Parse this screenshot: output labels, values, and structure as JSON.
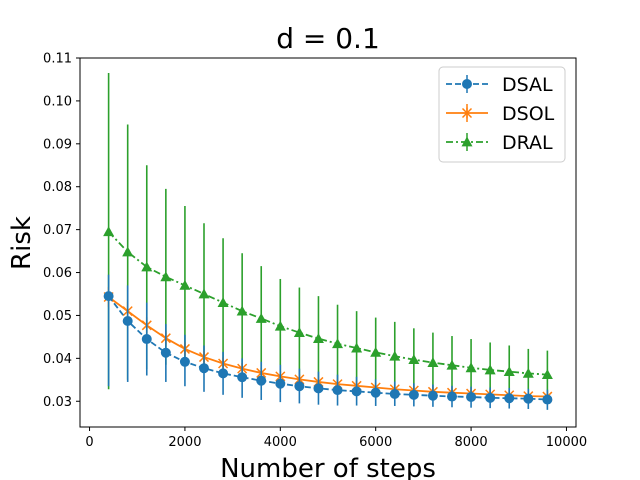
{
  "chart_data": {
    "type": "line",
    "title": "d = 0.1",
    "xlabel": "Number of steps",
    "ylabel": "Risk",
    "xlim": [
      -200,
      10200
    ],
    "ylim": [
      0.024,
      0.11
    ],
    "xticks": [
      0,
      2000,
      4000,
      6000,
      8000,
      10000
    ],
    "xtick_labels": [
      "0",
      "2000",
      "4000",
      "6000",
      "8000",
      "10000"
    ],
    "yticks": [
      0.03,
      0.04,
      0.05,
      0.06,
      0.07,
      0.08,
      0.09,
      0.1,
      0.11
    ],
    "ytick_labels": [
      "0.03",
      "0.04",
      "0.05",
      "0.06",
      "0.07",
      "0.08",
      "0.09",
      "0.10",
      "0.11"
    ],
    "grid": false,
    "legend_position": "top-right",
    "x": [
      400,
      800,
      1200,
      1600,
      2000,
      2400,
      2800,
      3200,
      3600,
      4000,
      4400,
      4800,
      5200,
      5600,
      6000,
      6400,
      6800,
      7200,
      7600,
      8000,
      8400,
      8800,
      9200,
      9600
    ],
    "series": [
      {
        "name": "DSAL",
        "color": "#1f77b4",
        "line_style": "dashed",
        "marker": "circle",
        "values": [
          0.0545,
          0.0487,
          0.0445,
          0.0413,
          0.0392,
          0.0377,
          0.0365,
          0.0356,
          0.0348,
          0.0341,
          0.0335,
          0.033,
          0.0326,
          0.0323,
          0.032,
          0.0317,
          0.0315,
          0.0313,
          0.0311,
          0.031,
          0.0308,
          0.0307,
          0.0306,
          0.0304
        ],
        "err_low": [
          0.0335,
          0.0345,
          0.036,
          0.0345,
          0.0335,
          0.0322,
          0.0315,
          0.0308,
          0.0303,
          0.0298,
          0.0295,
          0.0292,
          0.029,
          0.029,
          0.0289,
          0.0289,
          0.0288,
          0.0287,
          0.0286,
          0.0285,
          0.0284,
          0.0283,
          0.0282,
          0.028
        ],
        "err_high": [
          0.0595,
          0.057,
          0.053,
          0.048,
          0.0455,
          0.043,
          0.0415,
          0.04,
          0.0392,
          0.0385,
          0.0376,
          0.0369,
          0.0362,
          0.0357,
          0.0351,
          0.0346,
          0.0342,
          0.0339,
          0.0336,
          0.0334,
          0.0332,
          0.0331,
          0.0329,
          0.0327
        ]
      },
      {
        "name": "DSOL",
        "color": "#ff7f0e",
        "line_style": "solid",
        "marker": "x",
        "values": [
          0.0543,
          0.051,
          0.0477,
          0.0447,
          0.0422,
          0.0403,
          0.0388,
          0.0376,
          0.0366,
          0.0358,
          0.0351,
          0.0345,
          0.034,
          0.0336,
          0.0332,
          0.0328,
          0.0325,
          0.0322,
          0.032,
          0.0318,
          0.0316,
          0.0314,
          0.0312,
          0.0311
        ],
        "err_low": [
          0.052,
          0.0488,
          0.0458,
          0.043,
          0.0406,
          0.0389,
          0.0374,
          0.0363,
          0.0354,
          0.0346,
          0.034,
          0.0335,
          0.033,
          0.0326,
          0.0323,
          0.0319,
          0.0316,
          0.0314,
          0.0311,
          0.031,
          0.0308,
          0.0306,
          0.0304,
          0.0303
        ],
        "err_high": [
          0.0566,
          0.0532,
          0.0496,
          0.0464,
          0.0438,
          0.0417,
          0.0402,
          0.0389,
          0.0378,
          0.037,
          0.0362,
          0.0355,
          0.035,
          0.0346,
          0.0341,
          0.0337,
          0.0334,
          0.033,
          0.0329,
          0.0326,
          0.0324,
          0.0322,
          0.032,
          0.0319
        ]
      },
      {
        "name": "DRAL",
        "color": "#2ca02c",
        "line_style": "dashdot",
        "marker": "triangle",
        "values": [
          0.0695,
          0.0648,
          0.0613,
          0.059,
          0.057,
          0.055,
          0.053,
          0.051,
          0.0493,
          0.0475,
          0.046,
          0.0446,
          0.0434,
          0.0424,
          0.0414,
          0.0405,
          0.0397,
          0.039,
          0.0384,
          0.0378,
          0.0373,
          0.0369,
          0.0365,
          0.0362
        ],
        "err_low": [
          0.0328,
          0.035,
          0.0375,
          0.0385,
          0.0385,
          0.0385,
          0.038,
          0.0375,
          0.0372,
          0.0365,
          0.0358,
          0.0352,
          0.0347,
          0.0343,
          0.0338,
          0.0334,
          0.033,
          0.0327,
          0.0323,
          0.032,
          0.0318,
          0.0316,
          0.0314,
          0.0311
        ],
        "err_high": [
          0.1065,
          0.0945,
          0.085,
          0.0795,
          0.0755,
          0.0715,
          0.068,
          0.0645,
          0.0615,
          0.0585,
          0.0565,
          0.0545,
          0.0525,
          0.051,
          0.0495,
          0.0485,
          0.047,
          0.046,
          0.0452,
          0.0445,
          0.0437,
          0.043,
          0.0422,
          0.0418
        ]
      }
    ]
  }
}
